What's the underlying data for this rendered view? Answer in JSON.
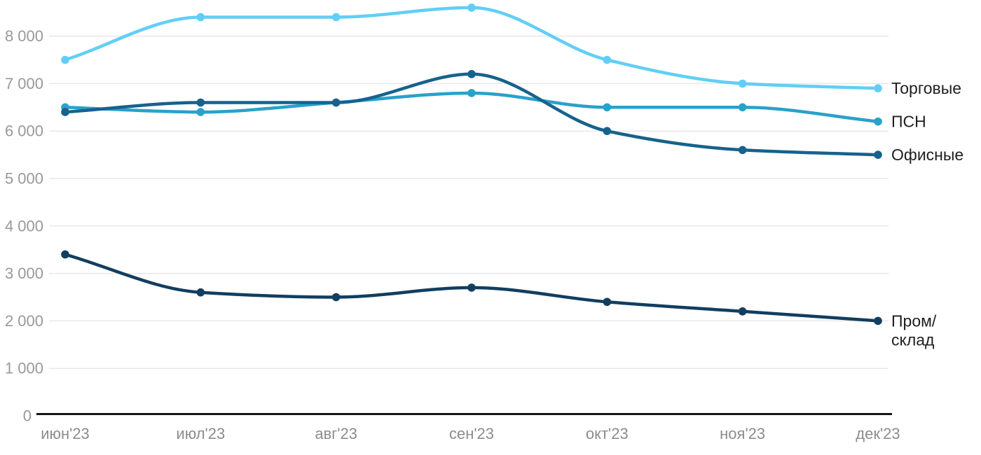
{
  "chart_data": {
    "type": "line",
    "title": "",
    "xlabel": "",
    "ylabel": "",
    "categories": [
      "июн'23",
      "июл'23",
      "авг'23",
      "сен'23",
      "окт'23",
      "ноя'23",
      "дек'23"
    ],
    "series": [
      {
        "name": "Торговые",
        "color": "#62cef6",
        "values": [
          7500,
          8400,
          8400,
          8600,
          7500,
          7000,
          6900
        ],
        "label_lines": [
          "Торговые"
        ]
      },
      {
        "name": "ПСН",
        "color": "#29a1cb",
        "values": [
          6500,
          6400,
          6600,
          6800,
          6500,
          6500,
          6200
        ],
        "label_lines": [
          "ПСН"
        ]
      },
      {
        "name": "Офисные",
        "color": "#16628c",
        "values": [
          6400,
          6600,
          6600,
          7200,
          6000,
          5600,
          5500
        ],
        "label_lines": [
          "Офисные"
        ]
      },
      {
        "name": "Пром/склад",
        "color": "#123e5f",
        "values": [
          3400,
          2600,
          2500,
          2700,
          2400,
          2200,
          2000
        ],
        "label_lines": [
          "Пром/",
          "склад"
        ]
      }
    ],
    "y_ticks": [
      0,
      1000,
      2000,
      3000,
      4000,
      5000,
      6000,
      7000,
      8000
    ],
    "y_tick_labels": [
      "0",
      "1 000",
      "2 000",
      "3 000",
      "4 000",
      "5 000",
      "6 000",
      "7 000",
      "8 000"
    ],
    "ylim": [
      0,
      8800
    ],
    "grid": true,
    "legend_position": "right-end-labels",
    "colors": {
      "background": "#ffffff",
      "gridline": "#e8e8e8",
      "axis": "#161616",
      "y_tick_text": "#999999",
      "x_tick_text": "#8c8c8c",
      "end_label_text": "#1f1f1f"
    }
  }
}
